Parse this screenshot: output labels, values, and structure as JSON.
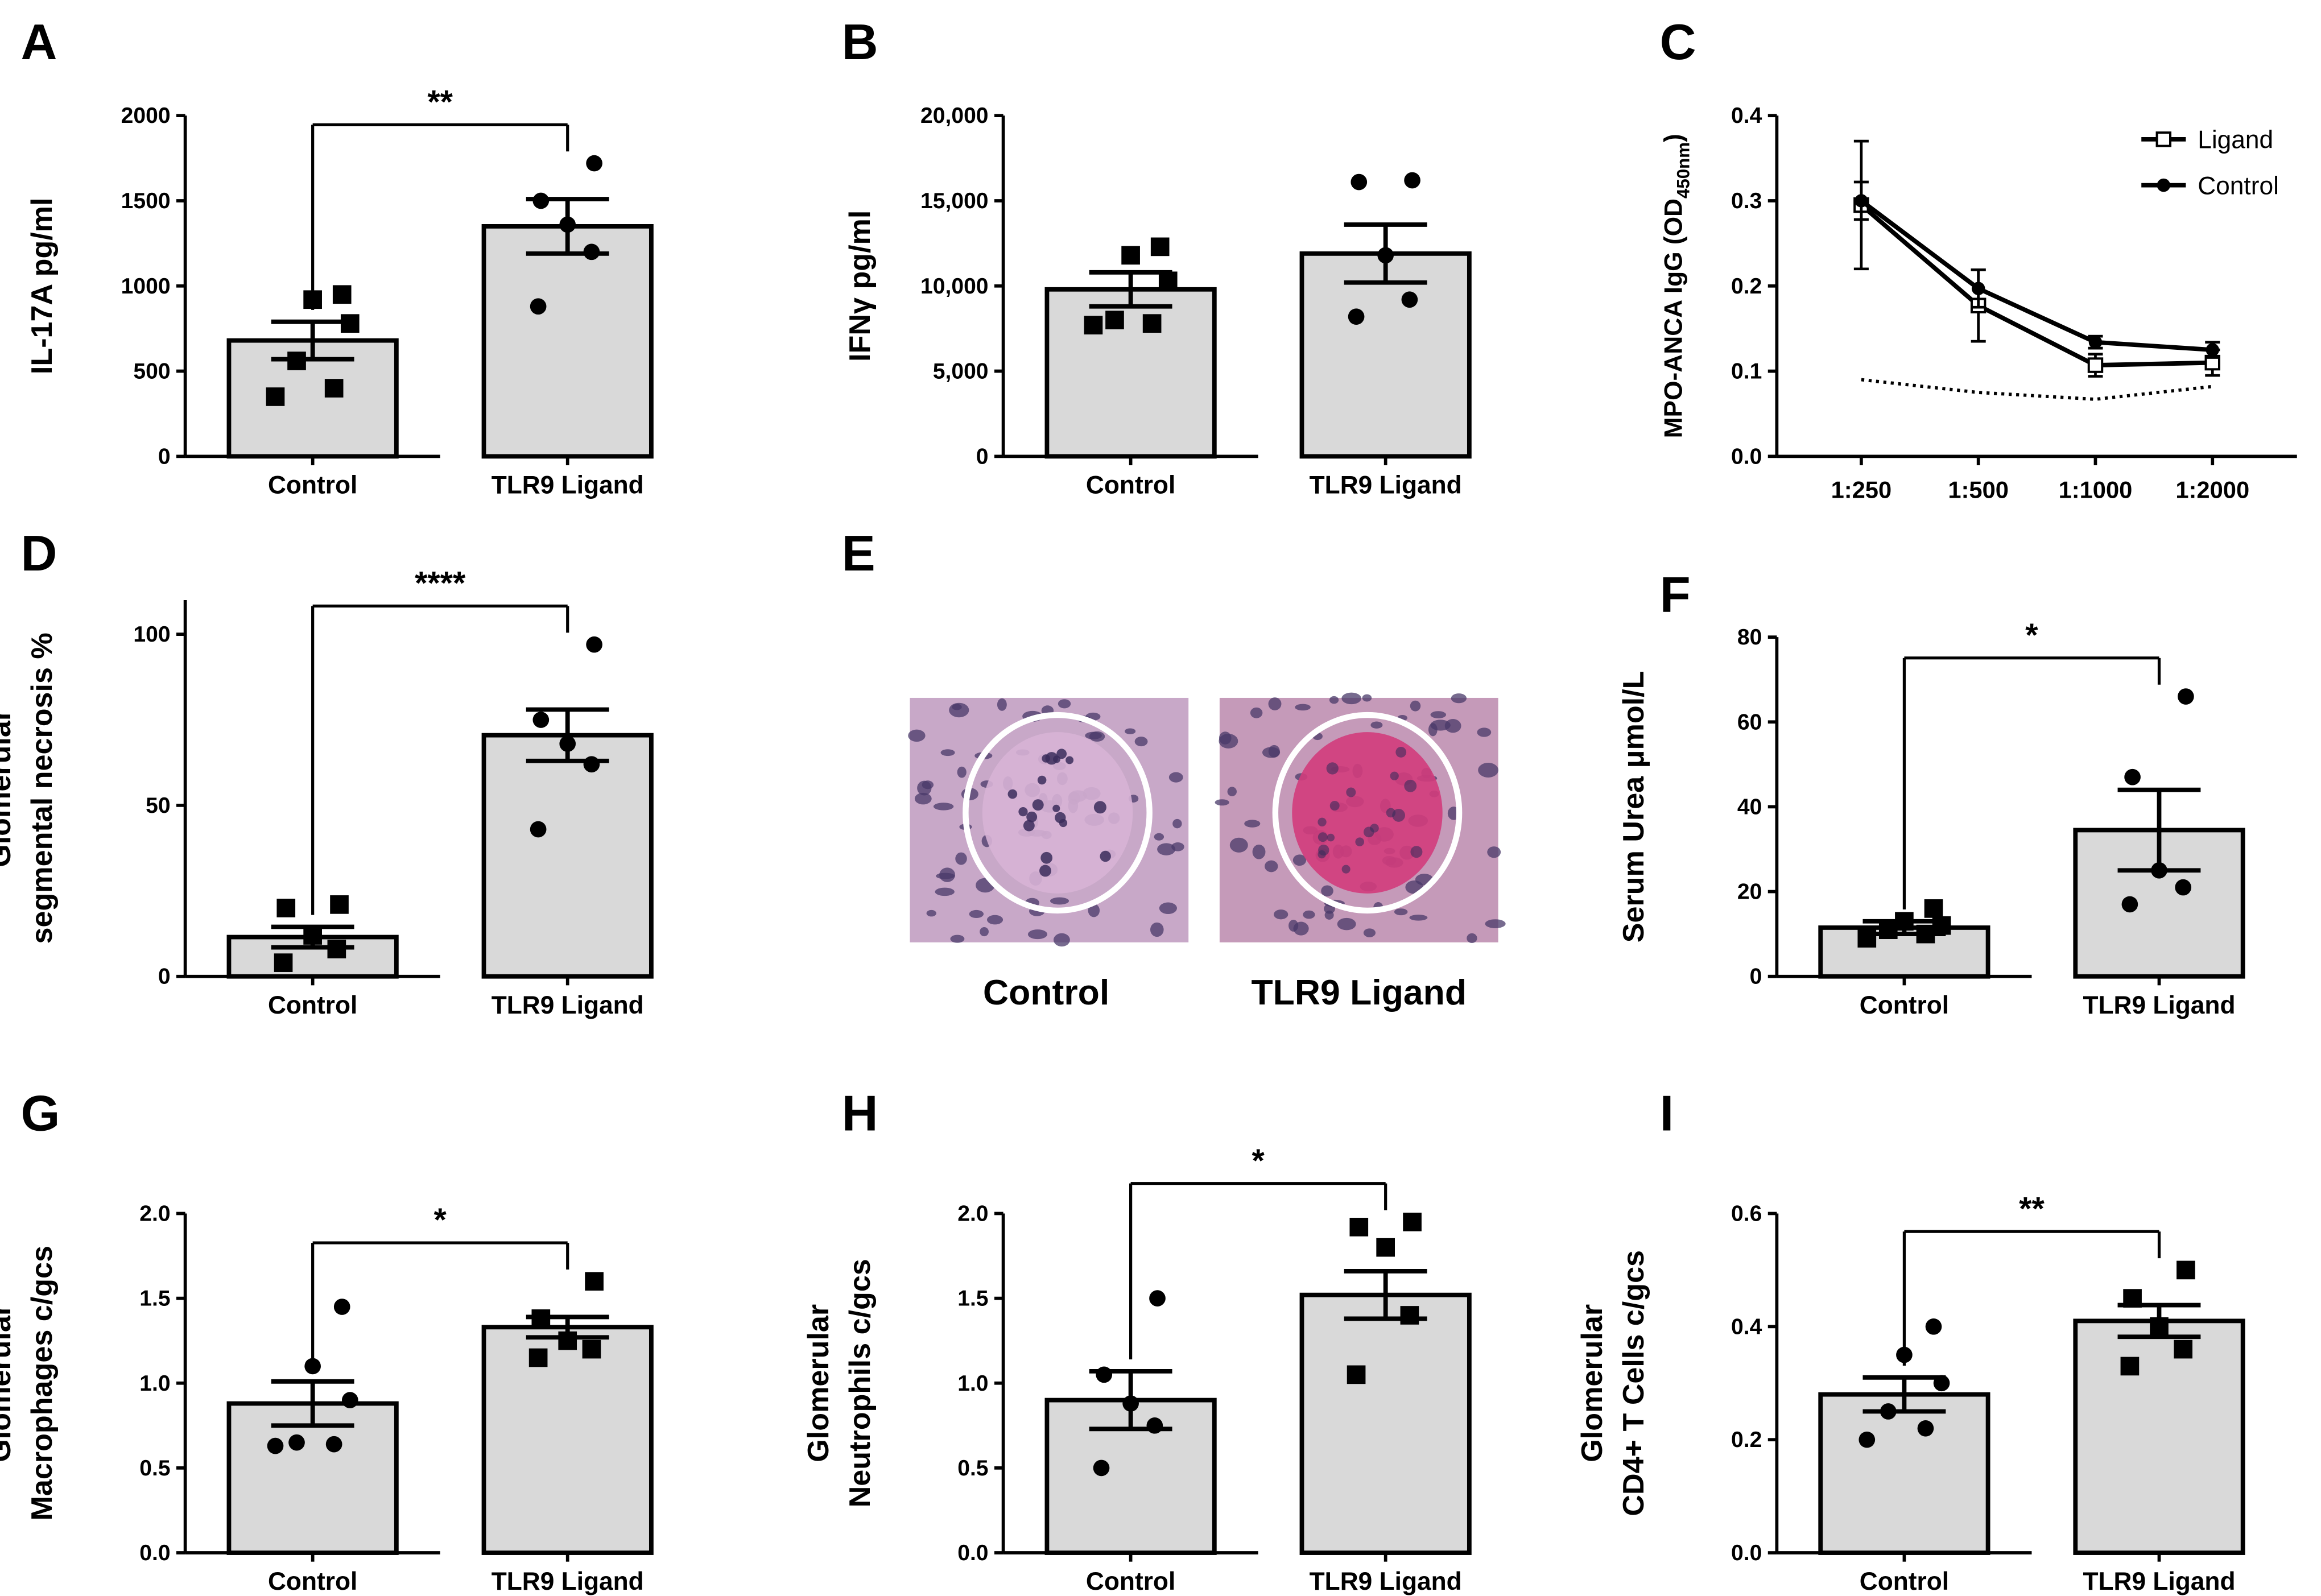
{
  "chart_data": [
    {
      "panel": "A",
      "type": "bar",
      "ylabel": "IL-17A pg/ml",
      "categories": [
        "Control",
        "TLR9 Ligand"
      ],
      "ylim": [
        0,
        2000
      ],
      "yticks": [
        0,
        500,
        1000,
        1500,
        2000
      ],
      "ytick_labels": [
        "0",
        "500",
        "1000",
        "1500",
        "2000"
      ],
      "values": [
        680,
        1350
      ],
      "sem": [
        110,
        160
      ],
      "points": [
        [
          350,
          400,
          560,
          780,
          920,
          950
        ],
        [
          880,
          1200,
          1360,
          1500,
          1720
        ]
      ],
      "markers": [
        "square",
        "circle"
      ],
      "significance": "**"
    },
    {
      "panel": "B",
      "type": "bar",
      "ylabel": "IFNγ pg/ml",
      "categories": [
        "Control",
        "TLR9 Ligand"
      ],
      "ylim": [
        0,
        20000
      ],
      "yticks": [
        0,
        5000,
        10000,
        15000,
        20000
      ],
      "ytick_labels": [
        "0",
        "5,000",
        "10,000",
        "15,000",
        "20,000"
      ],
      "values": [
        9800,
        11900
      ],
      "sem": [
        1000,
        1700
      ],
      "points": [
        [
          7700,
          7800,
          8000,
          10300,
          11800,
          12300
        ],
        [
          8200,
          9200,
          11800,
          16100,
          16200
        ]
      ],
      "markers": [
        "square",
        "circle"
      ],
      "significance": ""
    },
    {
      "panel": "C",
      "type": "line",
      "ylabel_main": "MPO-ANCA IgG (OD",
      "ylabel_sub": "450nm",
      "ylabel_end": ")",
      "categories": [
        "1:250",
        "1:500",
        "1:1000",
        "1:2000"
      ],
      "ylim": [
        0,
        0.4
      ],
      "yticks": [
        0,
        0.1,
        0.2,
        0.3,
        0.4
      ],
      "ytick_labels": [
        "0.0",
        "0.1",
        "0.2",
        "0.3",
        "0.4"
      ],
      "series": [
        {
          "name": "Ligand",
          "marker": "open-square",
          "values": [
            0.295,
            0.177,
            0.107,
            0.11
          ],
          "sem": [
            0.075,
            0.042,
            0.013,
            0.015
          ]
        },
        {
          "name": "Control",
          "marker": "filled-circle",
          "values": [
            0.3,
            0.197,
            0.134,
            0.125
          ],
          "sem": [
            0.022,
            0.022,
            0.007,
            0.009
          ]
        },
        {
          "name": "",
          "style": "dotted",
          "values": [
            0.09,
            0.075,
            0.067,
            0.082
          ]
        }
      ],
      "legend_position": "top-right"
    },
    {
      "panel": "D",
      "type": "bar",
      "ylabel_lines": [
        "Glomerular",
        "segmental necrosis %"
      ],
      "categories": [
        "Control",
        "TLR9 Ligand"
      ],
      "ylim": [
        0,
        110
      ],
      "yticks": [
        0,
        50,
        100
      ],
      "ytick_labels": [
        "0",
        "50",
        "100"
      ],
      "values": [
        11.5,
        70.5
      ],
      "sem": [
        3,
        7.5
      ],
      "points": [
        [
          4,
          8,
          12,
          20,
          21
        ],
        [
          43,
          62,
          68,
          75,
          97
        ]
      ],
      "markers": [
        "square",
        "circle"
      ],
      "significance": "****"
    },
    {
      "panel": "E",
      "type": "image",
      "labels": [
        "Control",
        "TLR9 Ligand"
      ]
    },
    {
      "panel": "F",
      "type": "bar",
      "ylabel": "Serum Urea μmol/L",
      "categories": [
        "Control",
        "TLR9 Ligand"
      ],
      "ylim": [
        0,
        80
      ],
      "yticks": [
        0,
        20,
        40,
        60,
        80
      ],
      "ytick_labels": [
        "0",
        "20",
        "40",
        "60",
        "80"
      ],
      "values": [
        11.5,
        34.5
      ],
      "sem": [
        1.5,
        9.5
      ],
      "points": [
        [
          9,
          10,
          11,
          12,
          13,
          16
        ],
        [
          17,
          21,
          25,
          47,
          66
        ]
      ],
      "markers": [
        "square",
        "circle"
      ],
      "significance": "*"
    },
    {
      "panel": "G",
      "type": "bar",
      "ylabel_lines": [
        "Glomerular",
        "Macrophages c/gcs"
      ],
      "categories": [
        "Control",
        "TLR9 Ligand"
      ],
      "ylim": [
        0,
        2.0
      ],
      "yticks": [
        0,
        0.5,
        1.0,
        1.5,
        2.0
      ],
      "ytick_labels": [
        "0.0",
        "0.5",
        "1.0",
        "1.5",
        "2.0"
      ],
      "values": [
        0.88,
        1.33
      ],
      "sem": [
        0.13,
        0.06
      ],
      "points": [
        [
          0.63,
          0.64,
          0.65,
          0.9,
          1.1,
          1.45
        ],
        [
          1.15,
          1.2,
          1.25,
          1.38,
          1.6
        ]
      ],
      "markers": [
        "circle",
        "square"
      ],
      "significance": "*"
    },
    {
      "panel": "H",
      "type": "bar",
      "ylabel_lines": [
        "Glomerular",
        "Neutrophils c/gcs"
      ],
      "categories": [
        "Control",
        "TLR9 Ligand"
      ],
      "ylim": [
        0,
        2.0
      ],
      "yticks": [
        0,
        0.5,
        1.0,
        1.5,
        2.0
      ],
      "ytick_labels": [
        "0.0",
        "0.5",
        "1.0",
        "1.5",
        "2.0"
      ],
      "values": [
        0.9,
        1.52
      ],
      "sem": [
        0.17,
        0.14
      ],
      "points": [
        [
          0.5,
          0.75,
          0.88,
          1.05,
          1.5
        ],
        [
          1.05,
          1.4,
          1.8,
          1.92,
          1.95
        ]
      ],
      "markers": [
        "circle",
        "square"
      ],
      "significance": "*"
    },
    {
      "panel": "I",
      "type": "bar",
      "ylabel_lines": [
        "Glomerular",
        "CD4+ T Cells c/gcs"
      ],
      "categories": [
        "Control",
        "TLR9 Ligand"
      ],
      "ylim": [
        0,
        0.6
      ],
      "yticks": [
        0,
        0.2,
        0.4,
        0.6
      ],
      "ytick_labels": [
        "0.0",
        "0.2",
        "0.4",
        "0.6"
      ],
      "values": [
        0.28,
        0.41
      ],
      "sem": [
        0.03,
        0.028
      ],
      "points": [
        [
          0.2,
          0.22,
          0.25,
          0.3,
          0.35,
          0.4
        ],
        [
          0.33,
          0.36,
          0.4,
          0.45,
          0.5
        ]
      ],
      "markers": [
        "circle",
        "square"
      ],
      "significance": "**"
    }
  ]
}
